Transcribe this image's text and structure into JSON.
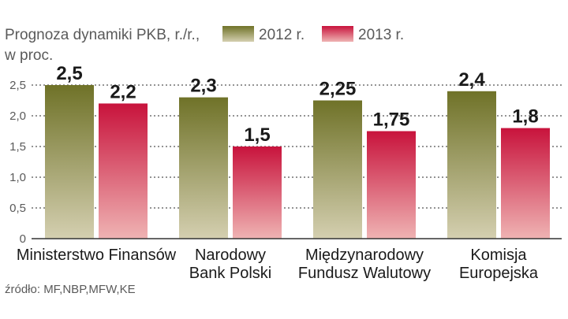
{
  "chart_data": {
    "type": "bar",
    "title_lines": [
      "Prognoza dynamiki PKB, r./r.,",
      "w proc."
    ],
    "categories": [
      [
        "Ministerstwo Finansów"
      ],
      [
        "Narodowy",
        "Bank Polski"
      ],
      [
        "Międzynarodowy",
        "Fundusz Walutowy"
      ],
      [
        "Komisja",
        "Europejska"
      ]
    ],
    "series": [
      {
        "name": "2012 r.",
        "values": [
          2.5,
          2.3,
          2.25,
          2.4
        ],
        "labels": [
          "2,5",
          "2,3",
          "2,25",
          "2,4"
        ]
      },
      {
        "name": "2013 r.",
        "values": [
          2.2,
          1.5,
          1.75,
          1.8
        ],
        "labels": [
          "2,2",
          "1,5",
          "1,75",
          "1,8"
        ]
      }
    ],
    "ylim": [
      0,
      2.5
    ],
    "yticks": [
      0,
      0.5,
      1.0,
      1.5,
      2.0,
      2.5
    ],
    "ytick_labels": [
      "0",
      "0,5",
      "1,0",
      "1,5",
      "2,0",
      "2,5"
    ],
    "grid": "dotted-horizontal",
    "legend": "top",
    "source": "źródło: MF,NBP,MFW,KE",
    "colors": {
      "s2012_top": "#6f7228",
      "s2012_bottom": "#d4cfb0",
      "s2013_top": "#c8133c",
      "s2013_bottom": "#efb3b3",
      "grid": "#555555",
      "axis": "#333333"
    }
  }
}
